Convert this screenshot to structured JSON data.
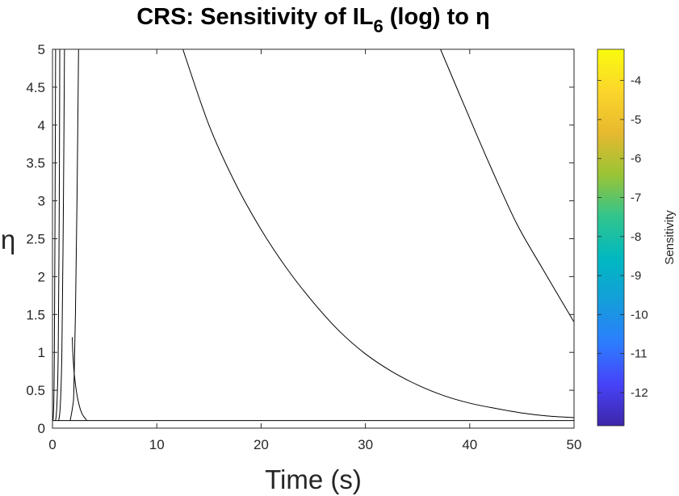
{
  "chart_data": {
    "type": "contour",
    "title": {
      "prefix": "CRS: Sensitivity of IL",
      "subscript": "6",
      "suffix": " (log) to η"
    },
    "xlabel": "Time (s)",
    "ylabel": "η",
    "xlim": [
      0,
      50
    ],
    "ylim": [
      0,
      5
    ],
    "xticks": [
      0,
      10,
      20,
      30,
      40,
      50
    ],
    "xtick_labels": [
      "0",
      "10",
      "20",
      "30",
      "40",
      "50"
    ],
    "yticks": [
      0,
      0.5,
      1,
      1.5,
      2,
      2.5,
      3,
      3.5,
      4,
      4.5,
      5
    ],
    "ytick_labels": [
      "0",
      "0.5",
      "1",
      "1.5",
      "2",
      "2.5",
      "3",
      "3.5",
      "4",
      "4.5",
      "5"
    ],
    "grid": false,
    "colorbar": {
      "label": "Sensitivity",
      "range": [
        -12.85,
        -3.2
      ],
      "ticks": [
        -12,
        -11,
        -10,
        -9,
        -8,
        -7,
        -6,
        -5,
        -4
      ],
      "tick_labels": [
        "-12",
        "-11",
        "-10",
        "-9",
        "-8",
        "-7",
        "-6",
        "-5",
        "-4"
      ],
      "colormap": "parula",
      "colormap_stops": [
        "#3e26a8",
        "#4743f9",
        "#2c7efe",
        "#149eda",
        "#00b8c0",
        "#31c58d",
        "#9ac435",
        "#e7b92f",
        "#fbd62b",
        "#f9fb0e"
      ]
    },
    "baseline_eta": 0.1,
    "contours": [
      {
        "x": [
          0.05,
          0.12,
          0.18,
          0.25,
          0.3
        ],
        "y": [
          0.1,
          0.3,
          1.0,
          3.0,
          5.0
        ]
      },
      {
        "x": [
          0.3,
          0.42,
          0.55,
          0.65,
          0.7
        ],
        "y": [
          0.1,
          0.3,
          1.0,
          3.0,
          5.0
        ]
      },
      {
        "x": [
          0.6,
          0.75,
          0.9,
          1.05,
          1.15
        ],
        "y": [
          0.1,
          0.3,
          1.0,
          3.0,
          5.0
        ]
      },
      {
        "x": [
          1.7,
          1.95,
          2.05,
          2.2,
          2.35,
          2.5
        ],
        "y": [
          0.1,
          0.3,
          0.5,
          1.5,
          3.0,
          5.0
        ]
      },
      {
        "x": [
          3.3,
          2.8,
          2.4,
          2.1,
          1.95,
          1.9
        ],
        "y": [
          0.1,
          0.2,
          0.4,
          0.7,
          1.0,
          1.2
        ]
      },
      {
        "x": [
          12.5,
          15,
          17.5,
          20,
          22.5,
          25,
          27.5,
          30,
          32.5,
          35,
          37.5,
          40,
          42.5,
          45,
          47.5,
          50
        ],
        "y": [
          5.0,
          4.0,
          3.24,
          2.62,
          2.1,
          1.66,
          1.28,
          0.98,
          0.75,
          0.57,
          0.43,
          0.33,
          0.26,
          0.2,
          0.16,
          0.14
        ]
      },
      {
        "x": [
          37.2,
          39.5,
          42,
          44.5,
          47,
          50
        ],
        "y": [
          5.0,
          4.25,
          3.45,
          2.7,
          2.1,
          1.4
        ]
      }
    ]
  }
}
